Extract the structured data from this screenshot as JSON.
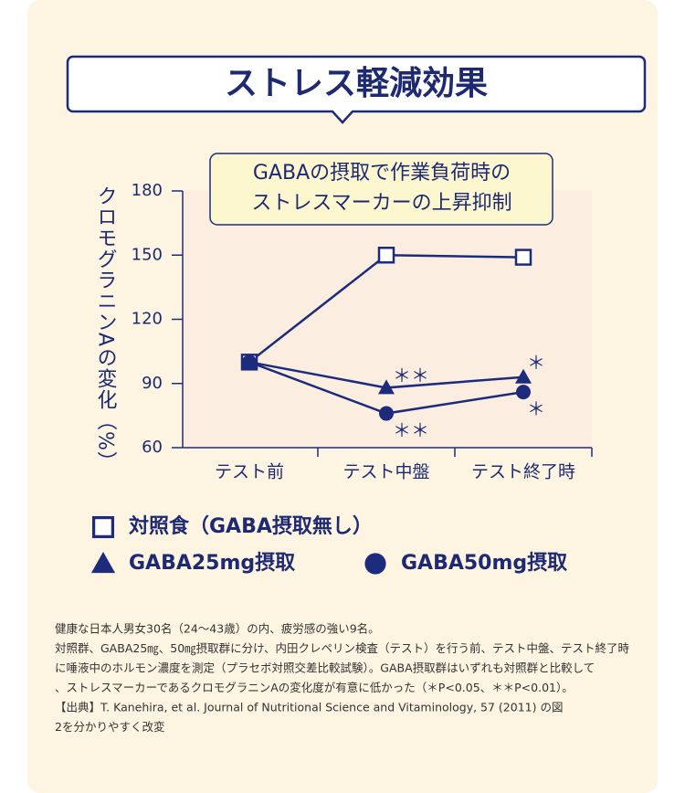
{
  "header": {
    "title": "ストレス軽減効果"
  },
  "chart_data": {
    "type": "line",
    "callout": [
      "GABAの摂取で作業負荷時の",
      "ストレスマーカーの上昇抑制"
    ],
    "y_label": "クロモグラニンAの変化（%）",
    "categories": [
      "テスト前",
      "テスト中盤",
      "テスト終了時"
    ],
    "series": [
      {
        "name": "対照食（GABA摂取無し）",
        "color": "#1d2b7c",
        "marker": "square",
        "values": [
          100,
          150,
          149
        ]
      },
      {
        "name": "GABA25mg摂取",
        "color": "#1d2b7c",
        "marker": "triangle",
        "values": [
          100,
          88,
          93
        ]
      },
      {
        "name": "GABA50mg摂取",
        "color": "#1d2b7c",
        "marker": "circle",
        "values": [
          100,
          76,
          86
        ]
      }
    ],
    "significance": [
      "＊＊",
      "＊＊",
      "＊",
      "＊"
    ],
    "ylim": [
      60,
      180
    ],
    "yticks": [
      60,
      90,
      120,
      150,
      180
    ]
  },
  "notes": [
    "健康な日本人男女30名（24〜43歳）の内、疲労感の強い9名。",
    "対照群、GABA25㎎、50㎎摂取群に分け、内田クレペリン検査（テスト）を行う前、テスト中盤、テスト終了時",
    "に唾液中のホルモン濃度を測定（プラセボ対照交差比較試験）。GABA摂取群はいずれも対照群と比較して",
    "、ストレスマーカーであるクロモグラニンAの変化度が有意に低かった（＊P<0.05、＊＊P<0.01）。",
    "【出典】T. Kanehira, et al. Journal of Nutritional Science and Vitaminology, 57 (2011) の図",
    "2を分かりやすく改変"
  ]
}
